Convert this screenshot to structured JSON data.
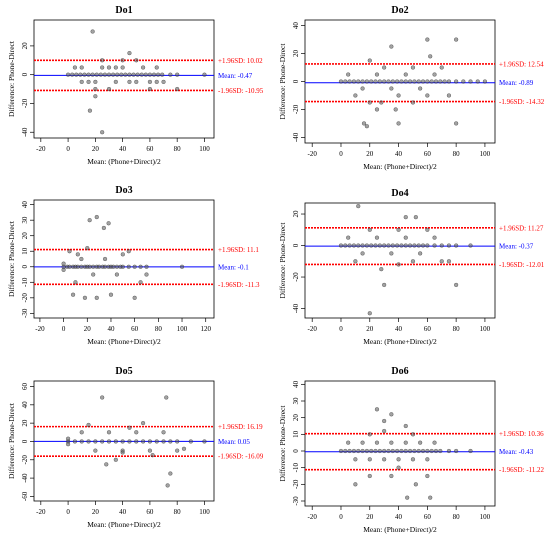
{
  "colors": {
    "mean_line": "#0000ff",
    "limit_line": "#ff0000",
    "point": "#555555",
    "axis": "#000000"
  },
  "chart_data": [
    {
      "type": "scatter",
      "title": "Do1",
      "xlabel": "Mean: (Phone+Direct)/2",
      "ylabel": "Difference: Phone-Direct",
      "xlim": [
        -25,
        107
      ],
      "ylim": [
        -44,
        38
      ],
      "xticks": [
        -20,
        0,
        20,
        40,
        60,
        80,
        100
      ],
      "yticks": [
        -40,
        -20,
        0,
        20
      ],
      "grid": false,
      "mean_value": -0.47,
      "upper_value": 10.02,
      "lower_value": -10.95,
      "mean_label": "Mean: -0.47",
      "upper_label": "+1.96SD: 10.02",
      "lower_label": "-1.96SD: -10.95",
      "points": [
        [
          0,
          0
        ],
        [
          3,
          0
        ],
        [
          6,
          0
        ],
        [
          9,
          0
        ],
        [
          12,
          0
        ],
        [
          15,
          0
        ],
        [
          18,
          0
        ],
        [
          21,
          0
        ],
        [
          24,
          0
        ],
        [
          27,
          0
        ],
        [
          30,
          0
        ],
        [
          33,
          0
        ],
        [
          36,
          0
        ],
        [
          39,
          0
        ],
        [
          42,
          0
        ],
        [
          45,
          0
        ],
        [
          48,
          0
        ],
        [
          51,
          0
        ],
        [
          54,
          0
        ],
        [
          57,
          0
        ],
        [
          60,
          0
        ],
        [
          63,
          0
        ],
        [
          66,
          0
        ],
        [
          69,
          0
        ],
        [
          75,
          0
        ],
        [
          80,
          0
        ],
        [
          100,
          0
        ],
        [
          5,
          5
        ],
        [
          10,
          5
        ],
        [
          15,
          -5
        ],
        [
          20,
          -5
        ],
        [
          25,
          5
        ],
        [
          30,
          5
        ],
        [
          35,
          -5
        ],
        [
          40,
          5
        ],
        [
          45,
          -5
        ],
        [
          50,
          -5
        ],
        [
          55,
          5
        ],
        [
          60,
          -5
        ],
        [
          65,
          5
        ],
        [
          70,
          -5
        ],
        [
          20,
          -10
        ],
        [
          30,
          -10
        ],
        [
          60,
          -10
        ],
        [
          40,
          10
        ],
        [
          50,
          10
        ],
        [
          25,
          10
        ],
        [
          18,
          30
        ],
        [
          25,
          -40
        ],
        [
          16,
          -25
        ],
        [
          20,
          -15
        ],
        [
          45,
          15
        ],
        [
          10,
          -5
        ],
        [
          65,
          -5
        ],
        [
          80,
          -10
        ],
        [
          35,
          5
        ]
      ]
    },
    {
      "type": "scatter",
      "title": "Do2",
      "xlabel": "Mean: (Phone+Direct)/2",
      "ylabel": "Difference: Phone-Direct",
      "xlim": [
        -25,
        107
      ],
      "ylim": [
        -44,
        44
      ],
      "xticks": [
        -20,
        0,
        20,
        40,
        60,
        80,
        100
      ],
      "yticks": [
        -40,
        -20,
        0,
        20,
        40
      ],
      "grid": false,
      "mean_value": -0.89,
      "upper_value": 12.54,
      "lower_value": -14.32,
      "mean_label": "Mean: -0.89",
      "upper_label": "+1.96SD: 12.54",
      "lower_label": "-1.96SD: -14.32",
      "points": [
        [
          0,
          0
        ],
        [
          3,
          0
        ],
        [
          6,
          0
        ],
        [
          9,
          0
        ],
        [
          12,
          0
        ],
        [
          15,
          0
        ],
        [
          18,
          0
        ],
        [
          21,
          0
        ],
        [
          24,
          0
        ],
        [
          27,
          0
        ],
        [
          30,
          0
        ],
        [
          33,
          0
        ],
        [
          36,
          0
        ],
        [
          39,
          0
        ],
        [
          42,
          0
        ],
        [
          45,
          0
        ],
        [
          48,
          0
        ],
        [
          51,
          0
        ],
        [
          54,
          0
        ],
        [
          57,
          0
        ],
        [
          60,
          0
        ],
        [
          63,
          0
        ],
        [
          66,
          0
        ],
        [
          69,
          0
        ],
        [
          72,
          0
        ],
        [
          75,
          0
        ],
        [
          80,
          0
        ],
        [
          85,
          0
        ],
        [
          90,
          0
        ],
        [
          95,
          0
        ],
        [
          100,
          0
        ],
        [
          5,
          5
        ],
        [
          15,
          -5
        ],
        [
          25,
          5
        ],
        [
          35,
          -5
        ],
        [
          45,
          5
        ],
        [
          55,
          -5
        ],
        [
          65,
          5
        ],
        [
          10,
          -10
        ],
        [
          20,
          -15
        ],
        [
          30,
          10
        ],
        [
          40,
          -10
        ],
        [
          50,
          10
        ],
        [
          60,
          -10
        ],
        [
          70,
          10
        ],
        [
          16,
          -30
        ],
        [
          18,
          -32
        ],
        [
          38,
          -20
        ],
        [
          60,
          30
        ],
        [
          80,
          30
        ],
        [
          35,
          25
        ],
        [
          62,
          18
        ],
        [
          40,
          -30
        ],
        [
          80,
          -30
        ],
        [
          25,
          -20
        ],
        [
          28,
          -15
        ],
        [
          20,
          15
        ],
        [
          50,
          -15
        ],
        [
          75,
          -10
        ]
      ]
    },
    {
      "type": "scatter",
      "title": "Do3",
      "xlabel": "Mean: (Phone+Direct)/2",
      "ylabel": "Difference: Phone-Direct",
      "xlim": [
        -25,
        127
      ],
      "ylim": [
        -33,
        43
      ],
      "xticks": [
        -20,
        0,
        20,
        40,
        60,
        80,
        100,
        120
      ],
      "yticks": [
        -30,
        -20,
        -10,
        0,
        10,
        20,
        30,
        40
      ],
      "grid": false,
      "mean_value": -0.1,
      "upper_value": 11.1,
      "lower_value": -11.3,
      "mean_label": "Mean: -0.1",
      "upper_label": "+1.96SD: 11.1",
      "lower_label": "-1.96SD: -11.3",
      "points": [
        [
          0,
          0
        ],
        [
          0,
          2
        ],
        [
          0,
          -2
        ],
        [
          3,
          0
        ],
        [
          5,
          0
        ],
        [
          8,
          0
        ],
        [
          10,
          0
        ],
        [
          12,
          0
        ],
        [
          15,
          0
        ],
        [
          18,
          0
        ],
        [
          20,
          0
        ],
        [
          22,
          0
        ],
        [
          25,
          0
        ],
        [
          28,
          0
        ],
        [
          30,
          0
        ],
        [
          33,
          0
        ],
        [
          35,
          0
        ],
        [
          38,
          0
        ],
        [
          40,
          0
        ],
        [
          42,
          0
        ],
        [
          45,
          0
        ],
        [
          48,
          0
        ],
        [
          50,
          0
        ],
        [
          55,
          0
        ],
        [
          60,
          0
        ],
        [
          65,
          0
        ],
        [
          70,
          0
        ],
        [
          100,
          0
        ],
        [
          5,
          10
        ],
        [
          10,
          -10
        ],
        [
          15,
          5
        ],
        [
          25,
          -5
        ],
        [
          35,
          5
        ],
        [
          45,
          -5
        ],
        [
          55,
          10
        ],
        [
          65,
          -10
        ],
        [
          22,
          30
        ],
        [
          28,
          32
        ],
        [
          38,
          28
        ],
        [
          34,
          25
        ],
        [
          8,
          -18
        ],
        [
          18,
          -20
        ],
        [
          28,
          -20
        ],
        [
          40,
          -18
        ],
        [
          60,
          -20
        ],
        [
          20,
          12
        ],
        [
          12,
          8
        ],
        [
          50,
          8
        ],
        [
          70,
          -5
        ]
      ]
    },
    {
      "type": "scatter",
      "title": "Do4",
      "xlabel": "Mean: (Phone+Direct)/2",
      "ylabel": "Difference: Phone-Direct",
      "xlim": [
        -25,
        107
      ],
      "ylim": [
        -46,
        27
      ],
      "xticks": [
        -20,
        0,
        20,
        40,
        60,
        80,
        100
      ],
      "yticks": [
        -40,
        -20,
        0,
        20
      ],
      "grid": false,
      "mean_value": -0.37,
      "upper_value": 11.27,
      "lower_value": -12.01,
      "mean_label": "Mean: -0.37",
      "upper_label": "+1.96SD: 11.27",
      "lower_label": "-1.96SD: -12.01",
      "points": [
        [
          0,
          0
        ],
        [
          3,
          0
        ],
        [
          6,
          0
        ],
        [
          9,
          0
        ],
        [
          12,
          0
        ],
        [
          15,
          0
        ],
        [
          18,
          0
        ],
        [
          21,
          0
        ],
        [
          24,
          0
        ],
        [
          27,
          0
        ],
        [
          30,
          0
        ],
        [
          33,
          0
        ],
        [
          36,
          0
        ],
        [
          39,
          0
        ],
        [
          42,
          0
        ],
        [
          45,
          0
        ],
        [
          48,
          0
        ],
        [
          51,
          0
        ],
        [
          54,
          0
        ],
        [
          57,
          0
        ],
        [
          60,
          0
        ],
        [
          65,
          0
        ],
        [
          70,
          0
        ],
        [
          75,
          0
        ],
        [
          80,
          0
        ],
        [
          90,
          0
        ],
        [
          5,
          5
        ],
        [
          15,
          -5
        ],
        [
          25,
          5
        ],
        [
          35,
          -5
        ],
        [
          45,
          5
        ],
        [
          55,
          -5
        ],
        [
          65,
          5
        ],
        [
          10,
          -10
        ],
        [
          20,
          10
        ],
        [
          40,
          10
        ],
        [
          50,
          -10
        ],
        [
          60,
          10
        ],
        [
          70,
          -10
        ],
        [
          12,
          25
        ],
        [
          20,
          -43
        ],
        [
          45,
          18
        ],
        [
          52,
          18
        ],
        [
          30,
          -25
        ],
        [
          80,
          -25
        ],
        [
          75,
          -10
        ],
        [
          28,
          -15
        ],
        [
          40,
          -12
        ]
      ]
    },
    {
      "type": "scatter",
      "title": "Do5",
      "xlabel": "Mean: (Phone+Direct)/2",
      "ylabel": "Difference: Phone-Direct",
      "xlim": [
        -25,
        107
      ],
      "ylim": [
        -65,
        66
      ],
      "xticks": [
        -20,
        0,
        20,
        40,
        60,
        80,
        100
      ],
      "yticks": [
        -60,
        -40,
        -20,
        0,
        20,
        40,
        60
      ],
      "grid": false,
      "mean_value": 0.05,
      "upper_value": 16.19,
      "lower_value": -16.09,
      "mean_label": "Mean: 0.05",
      "upper_label": "+1.96SD: 16.19",
      "lower_label": "-1.96SD: -16.09",
      "points": [
        [
          0,
          0
        ],
        [
          0,
          3
        ],
        [
          0,
          -3
        ],
        [
          5,
          0
        ],
        [
          10,
          0
        ],
        [
          15,
          0
        ],
        [
          20,
          0
        ],
        [
          25,
          0
        ],
        [
          30,
          0
        ],
        [
          35,
          0
        ],
        [
          40,
          0
        ],
        [
          45,
          0
        ],
        [
          50,
          0
        ],
        [
          55,
          0
        ],
        [
          60,
          0
        ],
        [
          65,
          0
        ],
        [
          70,
          0
        ],
        [
          75,
          0
        ],
        [
          80,
          0
        ],
        [
          90,
          0
        ],
        [
          100,
          0
        ],
        [
          10,
          10
        ],
        [
          20,
          -10
        ],
        [
          30,
          10
        ],
        [
          40,
          -10
        ],
        [
          50,
          10
        ],
        [
          60,
          -10
        ],
        [
          70,
          10
        ],
        [
          80,
          -10
        ],
        [
          25,
          48
        ],
        [
          72,
          48
        ],
        [
          28,
          -25
        ],
        [
          35,
          -20
        ],
        [
          75,
          -35
        ],
        [
          73,
          -48
        ],
        [
          55,
          20
        ],
        [
          45,
          15
        ],
        [
          15,
          18
        ],
        [
          62,
          -15
        ],
        [
          40,
          -12
        ],
        [
          85,
          -8
        ]
      ]
    },
    {
      "type": "scatter",
      "title": "Do6",
      "xlabel": "Mean: (Phone+Direct)/2",
      "ylabel": "Difference: Phone-Direct",
      "xlim": [
        -25,
        107
      ],
      "ylim": [
        -33,
        42
      ],
      "xticks": [
        -20,
        0,
        20,
        40,
        60,
        80,
        100
      ],
      "yticks": [
        -30,
        -20,
        -10,
        0,
        10,
        20,
        30,
        40
      ],
      "grid": false,
      "mean_value": -0.43,
      "upper_value": 10.36,
      "lower_value": -11.22,
      "mean_label": "Mean: -0.43",
      "upper_label": "+1.96SD: 10.36",
      "lower_label": "-1.96SD: -11.22",
      "points": [
        [
          0,
          0
        ],
        [
          3,
          0
        ],
        [
          6,
          0
        ],
        [
          9,
          0
        ],
        [
          12,
          0
        ],
        [
          15,
          0
        ],
        [
          18,
          0
        ],
        [
          21,
          0
        ],
        [
          24,
          0
        ],
        [
          27,
          0
        ],
        [
          30,
          0
        ],
        [
          33,
          0
        ],
        [
          36,
          0
        ],
        [
          39,
          0
        ],
        [
          42,
          0
        ],
        [
          45,
          0
        ],
        [
          48,
          0
        ],
        [
          51,
          0
        ],
        [
          54,
          0
        ],
        [
          57,
          0
        ],
        [
          60,
          0
        ],
        [
          63,
          0
        ],
        [
          66,
          0
        ],
        [
          69,
          0
        ],
        [
          75,
          0
        ],
        [
          80,
          0
        ],
        [
          90,
          0
        ],
        [
          5,
          5
        ],
        [
          10,
          -5
        ],
        [
          15,
          5
        ],
        [
          20,
          -5
        ],
        [
          25,
          5
        ],
        [
          30,
          -5
        ],
        [
          35,
          5
        ],
        [
          40,
          -5
        ],
        [
          45,
          5
        ],
        [
          50,
          -5
        ],
        [
          55,
          5
        ],
        [
          60,
          -5
        ],
        [
          65,
          5
        ],
        [
          20,
          10
        ],
        [
          30,
          12
        ],
        [
          40,
          -10
        ],
        [
          50,
          10
        ],
        [
          60,
          -15
        ],
        [
          25,
          25
        ],
        [
          35,
          22
        ],
        [
          46,
          -28
        ],
        [
          52,
          -20
        ],
        [
          20,
          -15
        ],
        [
          35,
          -15
        ],
        [
          10,
          -20
        ],
        [
          62,
          -28
        ],
        [
          30,
          18
        ],
        [
          45,
          15
        ]
      ]
    }
  ]
}
